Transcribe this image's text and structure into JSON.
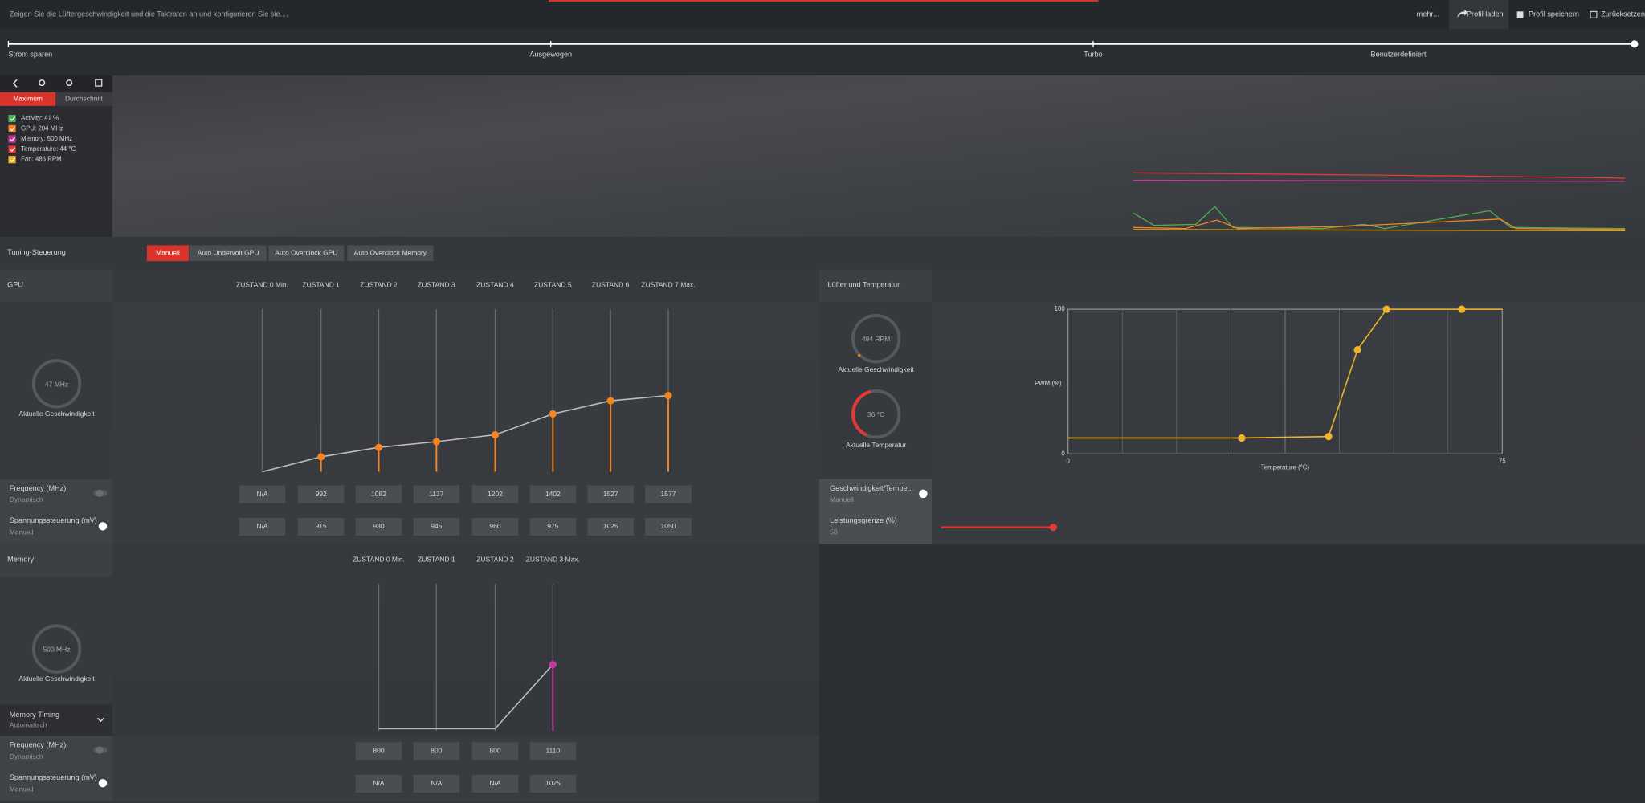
{
  "header": {
    "description": "Zeigen Sie die Lüftergeschwindigkeit und die Taktraten an und konfigurieren Sie sie....",
    "more": "mehr...",
    "load_profile": "Profil laden",
    "save_profile": "Profil speichern",
    "reset": "Zurücksetzen"
  },
  "presets": [
    "Strom sparen",
    "Ausgewogen",
    "Turbo",
    "Benutzerdefiniert"
  ],
  "monitor": {
    "tabs": [
      "Maximum",
      "Durchschnitt"
    ],
    "legend": [
      {
        "label": "Activity: 41 %",
        "color": "#4caf50"
      },
      {
        "label": "GPU: 204 MHz",
        "color": "#f5831f"
      },
      {
        "label": "Memory: 500 MHz",
        "color": "#c8389f"
      },
      {
        "label": "Temperature: 44 °C",
        "color": "#e53935"
      },
      {
        "label": "Fan: 486 RPM",
        "color": "#f0b429"
      }
    ]
  },
  "tuning": {
    "label": "Tuning-Steuerung",
    "modes": [
      "Manuell",
      "Auto Undervolt GPU",
      "Auto Overclock GPU",
      "Auto Overclock Memory"
    ]
  },
  "gpu": {
    "title": "GPU",
    "states": [
      "ZUSTAND 0 Min.",
      "ZUSTAND 1",
      "ZUSTAND 2",
      "ZUSTAND 3",
      "ZUSTAND 4",
      "ZUSTAND 5",
      "ZUSTAND 6",
      "ZUSTAND 7 Max."
    ],
    "gauge": {
      "value": "47 MHz",
      "label": "Aktuelle Geschwindigkeit"
    },
    "frequency": {
      "label": "Frequency (MHz)",
      "mode": "Dynamisch",
      "values": [
        "N/A",
        992,
        1082,
        1137,
        1202,
        1402,
        1527,
        1577
      ]
    },
    "voltage": {
      "label": "Spannungssteuerung (mV)",
      "mode": "Manuell",
      "values": [
        "N/A",
        915,
        930,
        945,
        960,
        975,
        1025,
        1050
      ]
    },
    "chart": {
      "ylim": [
        850,
        2400
      ],
      "color": "#f5831f"
    }
  },
  "memory": {
    "title": "Memory",
    "states": [
      "ZUSTAND 0 Min.",
      "ZUSTAND 1",
      "ZUSTAND 2",
      "ZUSTAND 3 Max."
    ],
    "gauge": {
      "value": "500 MHz",
      "label": "Aktuelle Geschwindigkeit"
    },
    "timing": {
      "label": "Memory Timing",
      "mode": "Automatisch"
    },
    "frequency": {
      "label": "Frequency (MHz)",
      "mode": "Dynamisch",
      "values": [
        800,
        800,
        800,
        1110
      ]
    },
    "voltage": {
      "label": "Spannungssteuerung (mV)",
      "mode": "Manuell",
      "values": [
        "N/A",
        "N/A",
        "N/A",
        1025
      ]
    },
    "chart": {
      "ylim": [
        790,
        1500
      ],
      "color": "#c8389f"
    }
  },
  "fan": {
    "title": "Lüfter und Temperatur",
    "speed_gauge": {
      "value": "484 RPM",
      "label": "Aktuelle Geschwindigkeit"
    },
    "temp_gauge": {
      "value": "36 °C",
      "label": "Aktuelle Temperatur"
    },
    "curve": {
      "y_label": "PWM (%)",
      "x_label": "Temperature (°C)",
      "xlim": [
        0,
        75
      ],
      "ylim": [
        0,
        100
      ],
      "xticks": [
        0,
        75
      ],
      "yticks": [
        0,
        100
      ],
      "temperature": [
        30,
        45,
        50,
        55,
        68
      ],
      "pwm": [
        11,
        12,
        72,
        100,
        100
      ],
      "color": "#f0b429"
    },
    "control": {
      "label": "Geschwindigkeit/Tempe...",
      "mode": "Manuell"
    },
    "power_limit": {
      "label": "Leistungsgrenze (%)",
      "value": 50
    }
  }
}
